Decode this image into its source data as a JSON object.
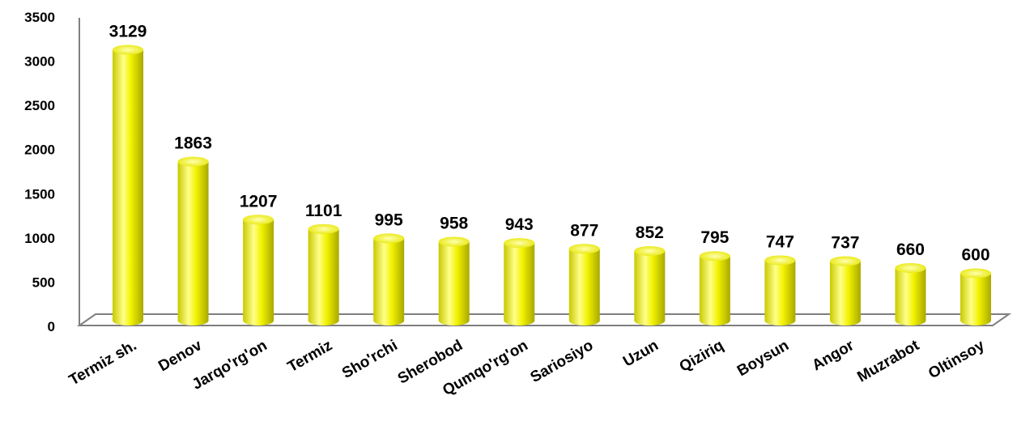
{
  "chart_data": {
    "type": "bar",
    "categories": [
      "Termiz sh.",
      "Denov",
      "Jarqo'rg'on",
      "Termiz",
      "Sho'rchi",
      "Sherobod",
      "Qumqo'rg'on",
      "Sariosiyo",
      "Uzun",
      "Qiziriq",
      "Boysun",
      "Angor",
      "Muzrabot",
      "Oltinsoy"
    ],
    "values": [
      3129,
      1863,
      1207,
      1101,
      995,
      958,
      943,
      877,
      852,
      795,
      747,
      737,
      660,
      600
    ],
    "data_labels": [
      "3129",
      "1863",
      "1207",
      "1101",
      "995",
      "958",
      "943",
      "877",
      "852",
      "795",
      "747",
      "737",
      "660",
      "600"
    ],
    "y_ticks": [
      "0",
      "500",
      "1000",
      "1500",
      "2000",
      "2500",
      "3000",
      "3500"
    ],
    "ylim": [
      0,
      3500
    ],
    "grid": false,
    "legend": "none",
    "bar_style": "3d-cylinder",
    "colors": {
      "bar": "#f2f200",
      "bar_light": "#ffff9a",
      "bar_dark": "#b8b800",
      "floor": "#7f7f7f"
    }
  }
}
